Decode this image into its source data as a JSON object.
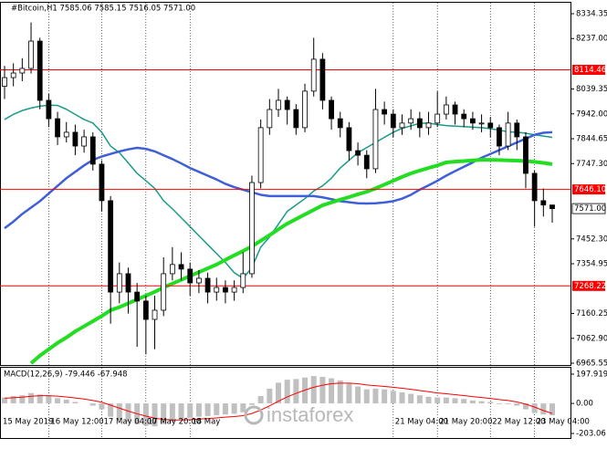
{
  "chart_data": {
    "type": "candlestick",
    "title": "#Bitcoin,H1  7585.06 7585.15 7516.05 7571.00",
    "categories": [
      "15 May 2019",
      null,
      null,
      null,
      null,
      "16 May 12:00",
      null,
      null,
      null,
      null,
      null,
      "17 May 04:00",
      null,
      null,
      null,
      null,
      "17 May 20:00",
      null,
      null,
      null,
      null,
      "18 May",
      null,
      null,
      null,
      null,
      null,
      null,
      null,
      null,
      null,
      null,
      null,
      null,
      null,
      null,
      null,
      null,
      null,
      null,
      null,
      null,
      null,
      null,
      "21 May 04:00",
      null,
      null,
      null,
      null,
      "21 May 20:00",
      null,
      null,
      null,
      null,
      null,
      "22 May 12:00",
      null,
      null,
      null,
      null,
      "23 May 04:00",
      null,
      null
    ],
    "open": [
      8050,
      8084,
      8102,
      8120,
      8227,
      7995,
      7923,
      7852,
      7870,
      7816,
      7852,
      7745,
      7602,
      7244,
      7316,
      7244,
      7209,
      7137,
      7173,
      7316,
      7352,
      7334,
      7280,
      7298,
      7244,
      7262,
      7244,
      7262,
      7316,
      7673,
      7888,
      7959,
      7995,
      7959,
      7888,
      8031,
      8156,
      7995,
      7923,
      7888,
      7798,
      7780,
      7727,
      7959,
      7941,
      7888,
      7906,
      7923,
      7888,
      7906,
      7941,
      7977,
      7941,
      7923,
      7906,
      7906,
      7888,
      7816,
      7906,
      7852,
      7709,
      7602,
      7585.06
    ],
    "high": [
      8130,
      8140,
      8160,
      8300,
      8240,
      8020,
      7950,
      7910,
      7900,
      7880,
      7870,
      7760,
      7620,
      7360,
      7340,
      7280,
      7230,
      7230,
      7380,
      7420,
      7400,
      7360,
      7330,
      7320,
      7300,
      7290,
      7290,
      7400,
      7700,
      7920,
      8000,
      8040,
      8010,
      7980,
      8060,
      8240,
      8180,
      8010,
      7950,
      7910,
      7830,
      7800,
      8040,
      7990,
      7960,
      7940,
      7960,
      7950,
      7950,
      8030,
      8010,
      7990,
      7960,
      7950,
      7940,
      7930,
      7900,
      7950,
      7920,
      7870,
      7720,
      7650,
      7585.15
    ],
    "low": [
      8000,
      8050,
      8070,
      8100,
      7960,
      7890,
      7820,
      7830,
      7780,
      7790,
      7720,
      7560,
      7120,
      7200,
      7160,
      7030,
      7000,
      7020,
      7150,
      7290,
      7290,
      7230,
      7240,
      7200,
      7210,
      7200,
      7210,
      7240,
      7300,
      7650,
      7860,
      7930,
      7900,
      7860,
      7870,
      8010,
      7960,
      7880,
      7850,
      7760,
      7740,
      7690,
      7710,
      7900,
      7850,
      7860,
      7880,
      7850,
      7860,
      7890,
      7920,
      7900,
      7890,
      7880,
      7870,
      7850,
      7780,
      7800,
      7800,
      7650,
      7500,
      7540,
      7516.05
    ],
    "close": [
      8084,
      8102,
      8120,
      8227,
      7995,
      7923,
      7852,
      7870,
      7816,
      7852,
      7745,
      7602,
      7244,
      7316,
      7244,
      7209,
      7137,
      7173,
      7316,
      7352,
      7334,
      7280,
      7298,
      7244,
      7262,
      7244,
      7262,
      7316,
      7673,
      7888,
      7959,
      7995,
      7959,
      7888,
      8031,
      8156,
      7995,
      7923,
      7888,
      7798,
      7780,
      7727,
      7959,
      7941,
      7888,
      7906,
      7923,
      7888,
      7906,
      7941,
      7977,
      7941,
      7923,
      7906,
      7906,
      7888,
      7816,
      7906,
      7852,
      7709,
      7602,
      7585,
      7571
    ],
    "up_color": "#ffffff",
    "down_color": "#000000",
    "overlays": [
      {
        "color": "#1a9a8a",
        "width": 1.5,
        "values": [
          7920,
          7940,
          7955,
          7965,
          7972,
          7976,
          7975,
          7960,
          7940,
          7920,
          7906,
          7870,
          7816,
          7790,
          7750,
          7709,
          7680,
          7650,
          7602,
          7570,
          7535,
          7500,
          7465,
          7430,
          7395,
          7360,
          7320,
          7298,
          7340,
          7420,
          7460,
          7510,
          7560,
          7585,
          7610,
          7640,
          7660,
          7690,
          7730,
          7760,
          7790,
          7810,
          7830,
          7850,
          7870,
          7885,
          7895,
          7905,
          7906,
          7900,
          7896,
          7894,
          7892,
          7890,
          7888,
          7884,
          7878,
          7872,
          7870,
          7866,
          7860,
          7855,
          7850
        ]
      },
      {
        "color": "#3f5fd8",
        "width": 2.5,
        "values": [
          7494,
          7520,
          7550,
          7575,
          7600,
          7630,
          7660,
          7690,
          7715,
          7740,
          7762,
          7775,
          7785,
          7795,
          7803,
          7809,
          7805,
          7795,
          7780,
          7765,
          7748,
          7730,
          7715,
          7700,
          7685,
          7668,
          7655,
          7645,
          7635,
          7625,
          7620,
          7620,
          7620,
          7620,
          7620,
          7620,
          7615,
          7608,
          7600,
          7596,
          7592,
          7591,
          7592,
          7595,
          7600,
          7610,
          7625,
          7645,
          7662,
          7680,
          7700,
          7718,
          7735,
          7752,
          7770,
          7785,
          7800,
          7815,
          7830,
          7845,
          7860,
          7868,
          7870
        ]
      },
      {
        "color": "#22dd22",
        "width": 4,
        "values": [
          null,
          null,
          null,
          6965,
          6995,
          7020,
          7045,
          7066,
          7090,
          7110,
          7130,
          7150,
          7173,
          7185,
          7200,
          7215,
          7230,
          7245,
          7262,
          7277,
          7292,
          7307,
          7322,
          7337,
          7352,
          7370,
          7388,
          7405,
          7423,
          7445,
          7467,
          7490,
          7512,
          7530,
          7548,
          7566,
          7584,
          7595,
          7606,
          7616,
          7627,
          7637,
          7650,
          7665,
          7680,
          7695,
          7709,
          7720,
          7730,
          7740,
          7752,
          7755,
          7757,
          7760,
          7762,
          7762,
          7761,
          7760,
          7759,
          7757,
          7754,
          7750,
          7745
        ]
      }
    ],
    "hlines": [
      8114.46,
      {
        "value": 7646.1,
        "label": "7646.10"
      },
      7268.22
    ],
    "hline_color": "#ff0000",
    "last_price": {
      "value": 7571,
      "label": "7571.00"
    },
    "ylim": [
      6965.55,
      8334.35
    ],
    "yticks": [
      8334.35,
      {
        "value": 8237,
        "label": "8237.00"
      },
      8039.35,
      {
        "value": 7942,
        "label": "7942.00"
      },
      7844.65,
      {
        "value": 7747.3,
        "label": "7747.30"
      },
      {
        "value": 7452.3,
        "label": "7452.30"
      },
      7354.95,
      7160.25,
      {
        "value": 7062.9,
        "label": "7062.90"
      },
      6965.55
    ],
    "grid": true,
    "watermark": "instaforex",
    "macd": {
      "type": "bar",
      "label": "MACD(12,26,9) -79.446 -67.948",
      "color": "#c0c0c0",
      "signal_color": "#ff0000",
      "values": [
        40,
        50,
        55,
        70,
        60,
        50,
        35,
        25,
        10,
        0,
        -15,
        -40,
        -90,
        -110,
        -125,
        -140,
        -150,
        -155,
        -140,
        -125,
        -110,
        -100,
        -90,
        -85,
        -80,
        -75,
        -70,
        -60,
        -10,
        50,
        100,
        140,
        160,
        165,
        175,
        185,
        180,
        170,
        155,
        135,
        115,
        95,
        100,
        95,
        85,
        75,
        65,
        55,
        45,
        40,
        40,
        35,
        30,
        20,
        15,
        10,
        -5,
        -5,
        -15,
        -40,
        -65,
        -75,
        -79.446
      ],
      "signal": [
        35,
        38,
        42,
        48,
        52,
        52,
        49,
        44,
        37,
        30,
        20,
        8,
        -12,
        -32,
        -52,
        -70,
        -86,
        -100,
        -108,
        -112,
        -112,
        -110,
        -106,
        -102,
        -98,
        -93,
        -89,
        -83,
        -68,
        -45,
        -16,
        15,
        44,
        68,
        90,
        109,
        123,
        133,
        137,
        137,
        133,
        125,
        120,
        115,
        109,
        102,
        95,
        87,
        79,
        71,
        65,
        59,
        53,
        46,
        40,
        34,
        26,
        20,
        10,
        -5,
        -25,
        -48,
        -67.948
      ],
      "ylim": [
        -203.06,
        197.919
      ],
      "yticks": [
        197.919,
        {
          "value": 0,
          "label": "0.00"
        },
        -203.06
      ]
    }
  }
}
